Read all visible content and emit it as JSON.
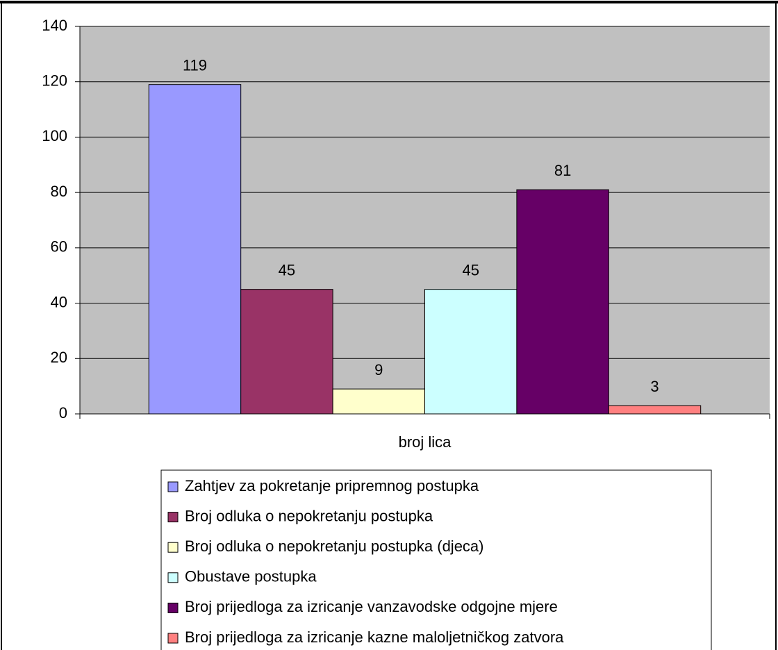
{
  "chart_data": {
    "type": "bar",
    "categories": [
      "broj lica"
    ],
    "series": [
      {
        "name": "Zahtjev za pokretanje pripremnog postupka",
        "color": "#9999ff",
        "values": [
          119
        ]
      },
      {
        "name": "Broj odluka o nepokretanju postupka",
        "color": "#993366",
        "values": [
          45
        ]
      },
      {
        "name": "Broj odluka o nepokretanju postupka (djeca)",
        "color": "#ffffcc",
        "values": [
          9
        ]
      },
      {
        "name": "Obustave postupka",
        "color": "#ccffff",
        "values": [
          45
        ]
      },
      {
        "name": "Broj prijedloga za izricanje vanzavodske odgojne mjere",
        "color": "#660066",
        "values": [
          81
        ]
      },
      {
        "name": "Broj prijedloga za izricanje kazne maloljetničkog zatvora",
        "color": "#ff8080",
        "values": [
          3
        ]
      }
    ],
    "ylim": [
      0,
      140
    ],
    "yticks": [
      0,
      20,
      40,
      60,
      80,
      100,
      120,
      140
    ],
    "grid": true,
    "legend": "bottom"
  }
}
